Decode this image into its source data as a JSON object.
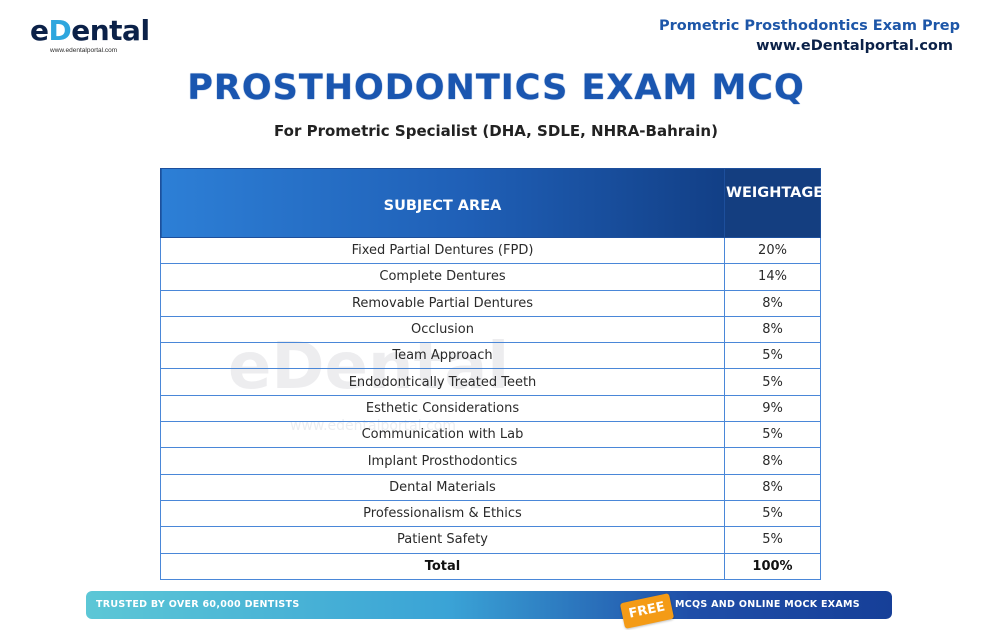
{
  "brand": {
    "logo_prefix": "e",
    "logo_tooth": "D",
    "logo_suffix": "ental",
    "logo_sub": "www.edentalportal.com"
  },
  "header": {
    "title": "Prometric Prosthodontics Exam Prep",
    "url": "www.eDentalportal.com"
  },
  "main": {
    "title": "PROSTHODONTICS EXAM MCQ",
    "subtitle": "For Prometric Specialist (DHA, SDLE, NHRA-Bahrain)"
  },
  "watermark": {
    "text": "eDental",
    "sub": "www.edentalportal.com"
  },
  "table": {
    "headers": [
      "SUBJECT AREA",
      "WEIGHTAGE"
    ],
    "rows": [
      {
        "subject": "Fixed Partial Dentures (FPD)",
        "weight": "20%"
      },
      {
        "subject": "Complete Dentures",
        "weight": "14%"
      },
      {
        "subject": "Removable Partial Dentures",
        "weight": "8%"
      },
      {
        "subject": "Occlusion",
        "weight": "8%"
      },
      {
        "subject": "Team Approach",
        "weight": "5%"
      },
      {
        "subject": "Endodontically Treated Teeth",
        "weight": "5%"
      },
      {
        "subject": "Esthetic Considerations",
        "weight": "9%"
      },
      {
        "subject": "Communication with Lab",
        "weight": "5%"
      },
      {
        "subject": "Implant Prosthodontics",
        "weight": "8%"
      },
      {
        "subject": "Dental Materials",
        "weight": "8%"
      },
      {
        "subject": "Professionalism & Ethics",
        "weight": "5%"
      },
      {
        "subject": "Patient Safety",
        "weight": "5%"
      }
    ],
    "total": {
      "subject": "Total",
      "weight": "100%"
    }
  },
  "footer": {
    "left": "TRUSTED BY OVER 60,000 DENTISTS",
    "badge": "FREE",
    "right": "MCQS AND ONLINE MOCK EXAMS"
  },
  "colors": {
    "title_blue": "#1a56b0",
    "header_navy": "#143e80",
    "border_blue": "#4a87d8",
    "badge_orange": "#f49b16"
  }
}
